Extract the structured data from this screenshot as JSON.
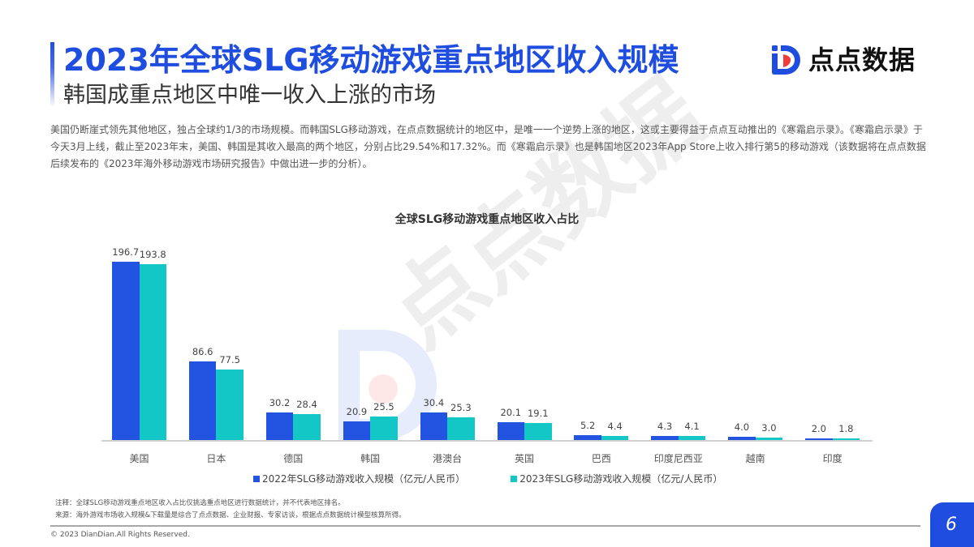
{
  "header": {
    "title": "2023年全球SLG移动游戏重点地区收入规模",
    "subtitle": "韩国成重点地区中唯一收入上涨的市场",
    "logo_text": "点点数据",
    "logo_icon": "diandian-d-logo-icon"
  },
  "body": {
    "paragraph": "美国仍断崖式领先其他地区，独占全球约1/3的市场规模。而韩国SLG移动游戏，在点点数据统计的地区中，是唯一一个逆势上涨的地区，这或主要得益于点点互动推出的《寒霜启示录》。《寒霜启示录》于今天3月上线，截止至2023年末，美国、韩国是其收入最高的两个地区，分别占比29.54%和17.32%。而《寒霜启示录》也是韩国地区2023年App Store上收入排行第5的移动游戏（该数据将在点点数据后续发布的《2023年海外移动游戏市场研究报告》中做出进一步的分析）。"
  },
  "watermark": {
    "text": "点点数据"
  },
  "colors": {
    "accent": "#1f4de0",
    "series_2022": "#2253e1",
    "series_2023": "#14c7c7"
  },
  "chart_data": {
    "type": "bar",
    "title": "全球SLG移动游戏重点地区收入占比",
    "xlabel": "",
    "ylabel": "",
    "categories": [
      "美国",
      "日本",
      "德国",
      "韩国",
      "港澳台",
      "英国",
      "巴西",
      "印度尼西亚",
      "越南",
      "印度"
    ],
    "series": [
      {
        "name": "2022年SLG移动游戏收入规模（亿元/人民币）",
        "values": [
          196.7,
          86.6,
          30.2,
          20.9,
          30.4,
          20.1,
          5.2,
          4.3,
          4.0,
          2.0
        ]
      },
      {
        "name": "2023年SLG移动游戏收入规模（亿元/人民币）",
        "values": [
          193.8,
          77.5,
          28.4,
          25.5,
          25.3,
          19.1,
          4.4,
          4.1,
          3.0,
          1.8
        ]
      }
    ],
    "value_labels": {
      "s1": [
        "196.7",
        "86.6",
        "30.2",
        "20.9",
        "30.4",
        "20.1",
        "5.2",
        "4.3",
        "4.0",
        "2.0"
      ],
      "s2": [
        "193.8",
        "77.5",
        "28.4",
        "25.5",
        "25.3",
        "19.1",
        "4.4",
        "4.1",
        "3.0",
        "1.8"
      ]
    },
    "grid": false,
    "legend_position": "bottom",
    "ylim": [
      0,
      200
    ]
  },
  "legend": {
    "items": [
      {
        "label": "2022年SLG移动游戏收入规模（亿元/人民币）",
        "color": "#2253e1"
      },
      {
        "label": "2023年SLG移动游戏收入规模（亿元/人民币）",
        "color": "#14c7c7"
      }
    ]
  },
  "footer": {
    "note": "注释：全球SLG移动游戏重点地区收入占比仅挑选重点地区进行数据统计，并不代表地区排名。",
    "source": "来源：海外游戏市场收入规模&下载量是综合了点点数据、企业财报、专家访谈，根据点点数据统计模型核算所得。",
    "copyright": "© 2023 DianDian.All Rights Reserved.",
    "page_number": "6"
  }
}
